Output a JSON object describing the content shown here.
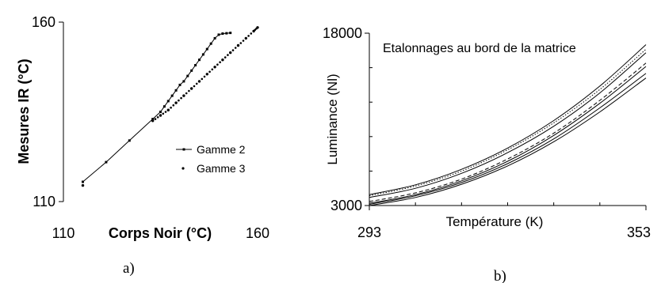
{
  "chart_data": [
    {
      "type": "scatter",
      "panel_label": "a)",
      "xlabel": "Corps Noir (°C)",
      "ylabel": "Mesures IR (°C)",
      "xlim": [
        110,
        160
      ],
      "ylim": [
        110,
        160
      ],
      "x_ticks": [
        "110",
        "160"
      ],
      "y_ticks": [
        "160",
        "110"
      ],
      "legend_position": "bottom-right",
      "series": [
        {
          "name": "Gamme 2",
          "style": "line-with-small-markers",
          "x": [
            115,
            121,
            127,
            133,
            135,
            136,
            137,
            138,
            139,
            140,
            141,
            142,
            143,
            144,
            145,
            146,
            147,
            148,
            149,
            150,
            151,
            152,
            153
          ],
          "y": [
            115.5,
            121,
            127,
            133,
            135,
            136.5,
            138,
            139.5,
            141,
            142.5,
            143.5,
            145,
            146.5,
            148,
            149.5,
            151,
            152.5,
            154,
            155.5,
            156.5,
            156.8,
            156.9,
            157
          ]
        },
        {
          "name": "Gamme 3",
          "style": "dotted-markers",
          "x": [
            115,
            133,
            135,
            137,
            139,
            141,
            143,
            145,
            147,
            149,
            151,
            153,
            155,
            157,
            159,
            160
          ],
          "y": [
            114.5,
            132.5,
            134,
            135.5,
            137.5,
            139.5,
            141.5,
            143.5,
            145.5,
            147.5,
            149.5,
            151.5,
            153.5,
            155.5,
            157.5,
            158.5
          ]
        }
      ]
    },
    {
      "type": "line",
      "panel_label": "b)",
      "title": "Etalonnages au bord de la matrice",
      "xlabel": "Température (K)",
      "ylabel": "Luminance (Nl)",
      "xlim": [
        293,
        353
      ],
      "ylim": [
        3000,
        18000
      ],
      "x_ticks": [
        "293",
        "353"
      ],
      "y_ticks": [
        "18000",
        "3000"
      ],
      "x": [
        293,
        303,
        313,
        323,
        333,
        343,
        353
      ],
      "series": [
        {
          "style": "solid",
          "values": [
            3700,
            4500,
            5800,
            7600,
            9900,
            12800,
            16300
          ]
        },
        {
          "style": "dotted",
          "values": [
            3850,
            4700,
            6000,
            7850,
            10200,
            13100,
            16600
          ]
        },
        {
          "style": "solid",
          "values": [
            3950,
            4800,
            6150,
            8000,
            10400,
            13400,
            17000
          ]
        },
        {
          "style": "solid",
          "values": [
            3200,
            3950,
            5150,
            6850,
            9100,
            11900,
            15100
          ]
        },
        {
          "style": "dashed",
          "values": [
            3350,
            4100,
            5300,
            7050,
            9300,
            12150,
            15400
          ]
        },
        {
          "style": "solid",
          "values": [
            3100,
            3850,
            5000,
            6650,
            8800,
            11500,
            14500
          ]
        },
        {
          "style": "solid",
          "values": [
            3000,
            3700,
            4850,
            6450,
            8550,
            11150,
            14100
          ]
        }
      ]
    }
  ]
}
